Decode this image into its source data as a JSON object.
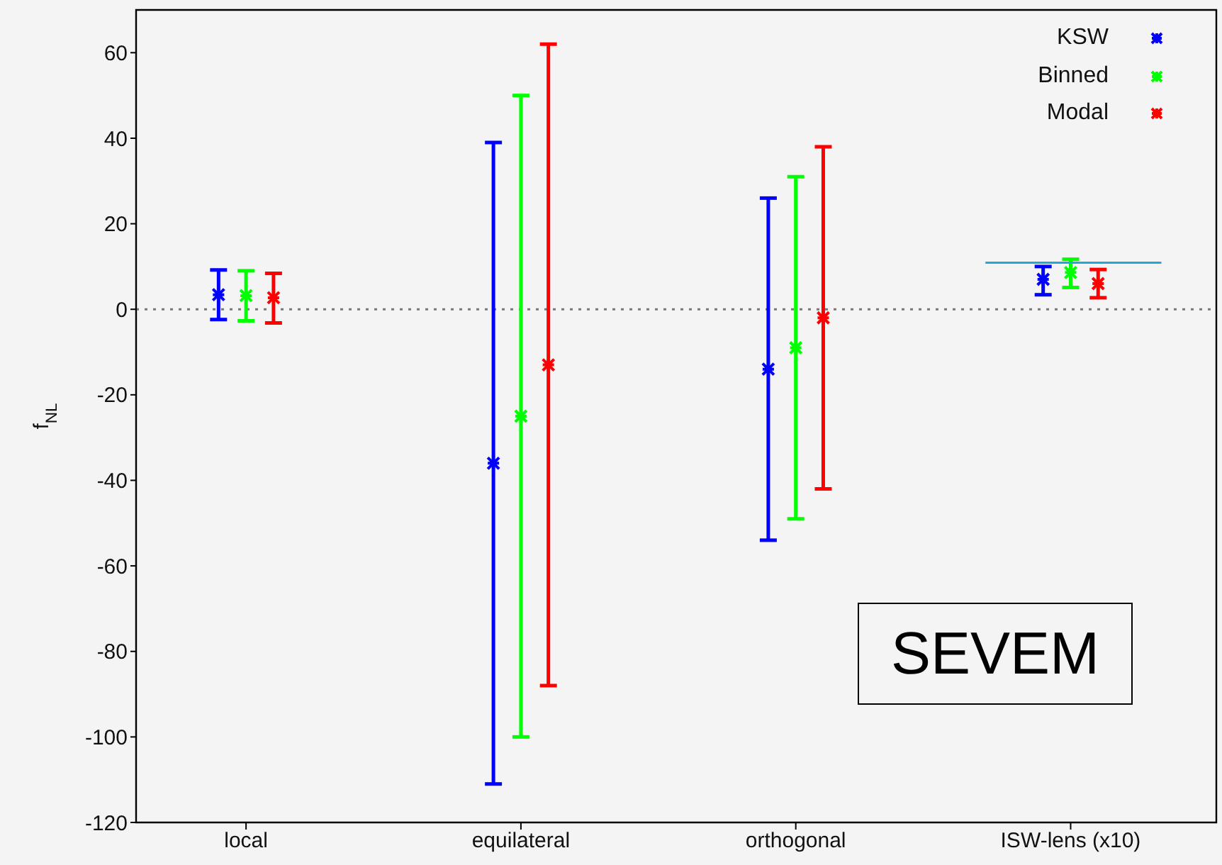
{
  "chart_data": {
    "type": "scatter",
    "ylabel": "f$_{NL}$",
    "categories": [
      "local",
      "equilateral",
      "orthogonal",
      "ISW-lens (x10)"
    ],
    "ylim": [
      -120,
      70
    ],
    "yticks": [
      -120,
      -100,
      -80,
      -60,
      -40,
      -20,
      0,
      20,
      40,
      60
    ],
    "grid": false,
    "legend": "top right",
    "marker": "cross",
    "series": [
      {
        "name": "KSW",
        "color": "#0000ff",
        "values": [
          3.4,
          -36,
          -14,
          7
        ],
        "errors": [
          [
            -2.4,
            9.2
          ],
          [
            -111,
            39
          ],
          [
            -54,
            26
          ],
          [
            3.4,
            10
          ]
        ]
      },
      {
        "name": "Binned",
        "color": "#00ff00",
        "values": [
          3.2,
          -25,
          -9,
          8.6
        ],
        "errors": [
          [
            -2.7,
            9
          ],
          [
            -100,
            50
          ],
          [
            -49,
            31
          ],
          [
            5.1,
            11.7
          ]
        ]
      },
      {
        "name": "Modal",
        "color": "#ff0000",
        "values": [
          2.7,
          -13,
          -2,
          6
        ],
        "errors": [
          [
            -3.2,
            8.4
          ],
          [
            -88,
            62
          ],
          [
            -42,
            38
          ],
          [
            2.7,
            9.3
          ]
        ]
      }
    ],
    "ref_lines": [
      {
        "axis": "y",
        "value": 0,
        "color": "#777777",
        "line_style": "dotted"
      },
      {
        "axis": "y",
        "value": 10.9,
        "color": "#1fa8d8",
        "line_style": "solid"
      }
    ],
    "annotations": [
      "SEVEM"
    ]
  }
}
